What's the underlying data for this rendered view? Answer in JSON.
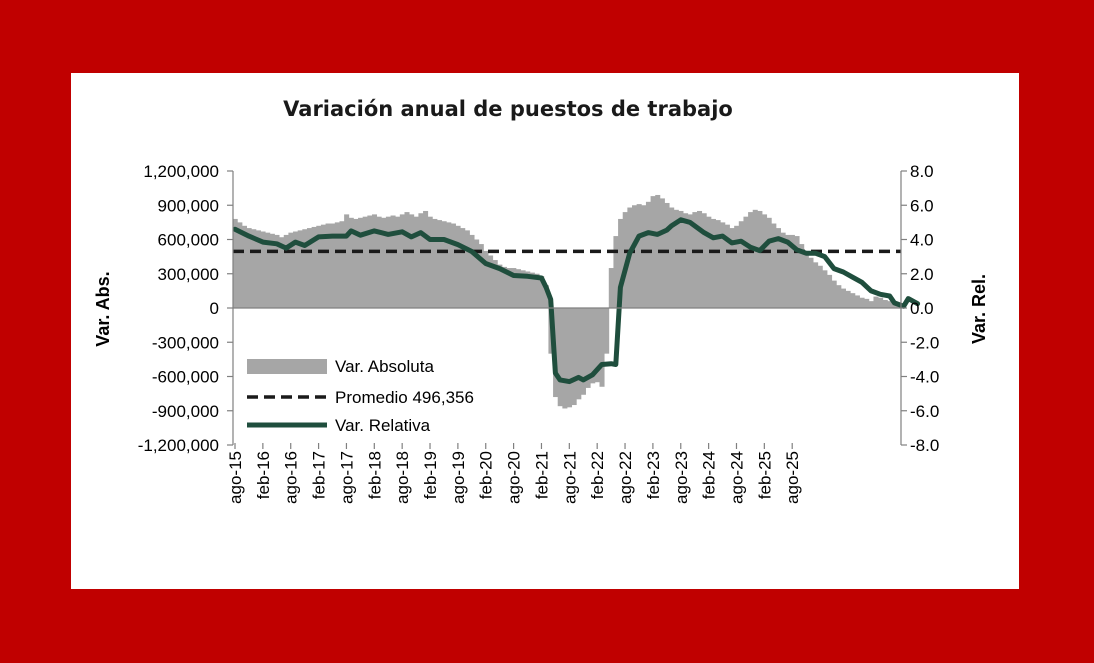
{
  "chart_data": {
    "type": "bar+line",
    "title": "Variación anual de puestos de trabajo",
    "ylabel_left": "Var. Abs.",
    "ylabel_right": "Var. Rel.",
    "ylim_left": [
      -1200000,
      1200000
    ],
    "ylim_right": [
      -8,
      8
    ],
    "yticks_left": [
      "1,200,000",
      "900,000",
      "600,000",
      "300,000",
      "0",
      "-300,000",
      "-600,000",
      "-900,000",
      "-1,200,000"
    ],
    "yticks_right": [
      "8.0",
      "6.0",
      "4.0",
      "2.0",
      "0.0",
      "-2.0",
      "-4.0",
      "-6.0",
      "-8.0"
    ],
    "xticks": [
      "ago-15",
      "feb-16",
      "ago-16",
      "feb-17",
      "ago-17",
      "feb-18",
      "ago-18",
      "feb-19",
      "ago-19",
      "feb-20",
      "ago-20",
      "feb-21",
      "ago-21",
      "feb-22",
      "ago-22",
      "feb-23",
      "ago-23",
      "feb-24",
      "ago-24",
      "feb-25",
      "ago-25"
    ],
    "average": 496356,
    "legend": {
      "position": "lower-left",
      "absolute": "Var. Absoluta",
      "average": "Promedio 496,356",
      "relative": "Var. Relativa"
    },
    "colors": {
      "bars": "#a6a6a6",
      "line": "#1f4e3d",
      "average": "#1a1a1a"
    },
    "absolute_monthly": [
      780000,
      750000,
      720000,
      700000,
      690000,
      680000,
      670000,
      660000,
      650000,
      640000,
      620000,
      640000,
      660000,
      670000,
      680000,
      690000,
      700000,
      710000,
      720000,
      730000,
      740000,
      740000,
      750000,
      760000,
      820000,
      790000,
      780000,
      790000,
      800000,
      810000,
      820000,
      800000,
      790000,
      800000,
      810000,
      800000,
      820000,
      840000,
      820000,
      800000,
      830000,
      850000,
      800000,
      780000,
      770000,
      760000,
      750000,
      740000,
      720000,
      700000,
      680000,
      640000,
      600000,
      560000,
      500000,
      460000,
      420000,
      380000,
      360000,
      350000,
      350000,
      340000,
      330000,
      320000,
      310000,
      300000,
      280000,
      200000,
      -400000,
      -780000,
      -860000,
      -880000,
      -870000,
      -850000,
      -800000,
      -760000,
      -700000,
      -660000,
      -650000,
      -690000,
      -400000,
      350000,
      630000,
      780000,
      840000,
      880000,
      900000,
      910000,
      900000,
      930000,
      980000,
      990000,
      960000,
      920000,
      880000,
      860000,
      850000,
      830000,
      820000,
      840000,
      850000,
      830000,
      800000,
      780000,
      770000,
      750000,
      730000,
      700000,
      720000,
      760000,
      800000,
      840000,
      860000,
      850000,
      820000,
      790000,
      740000,
      700000,
      660000,
      640000,
      640000,
      630000,
      560000,
      480000,
      440000,
      400000,
      370000,
      330000,
      290000,
      240000,
      200000,
      170000,
      150000,
      130000,
      110000,
      90000,
      80000,
      60000,
      100000,
      90000,
      70000,
      60000,
      50000,
      40000
    ],
    "relative_points": [
      [
        0,
        4.6
      ],
      [
        3,
        4.2
      ],
      [
        6,
        3.85
      ],
      [
        9,
        3.75
      ],
      [
        11,
        3.5
      ],
      [
        13,
        3.85
      ],
      [
        15,
        3.65
      ],
      [
        18,
        4.15
      ],
      [
        21,
        4.2
      ],
      [
        24,
        4.2
      ],
      [
        25,
        4.5
      ],
      [
        27,
        4.25
      ],
      [
        30,
        4.5
      ],
      [
        33,
        4.3
      ],
      [
        36,
        4.45
      ],
      [
        38,
        4.15
      ],
      [
        40,
        4.4
      ],
      [
        42,
        4.0
      ],
      [
        45,
        4.0
      ],
      [
        48,
        3.7
      ],
      [
        51,
        3.3
      ],
      [
        54,
        2.6
      ],
      [
        57,
        2.3
      ],
      [
        60,
        1.9
      ],
      [
        63,
        1.85
      ],
      [
        66,
        1.75
      ],
      [
        67,
        1.2
      ],
      [
        68,
        0.5
      ],
      [
        69,
        -3.8
      ],
      [
        70,
        -4.2
      ],
      [
        72,
        -4.3
      ],
      [
        74,
        -4.05
      ],
      [
        75,
        -4.2
      ],
      [
        77,
        -3.9
      ],
      [
        79,
        -3.3
      ],
      [
        81,
        -3.25
      ],
      [
        82,
        -3.3
      ],
      [
        83,
        1.2
      ],
      [
        85,
        3.2
      ],
      [
        87,
        4.2
      ],
      [
        89,
        4.4
      ],
      [
        91,
        4.3
      ],
      [
        93,
        4.55
      ],
      [
        94,
        4.8
      ],
      [
        96,
        5.15
      ],
      [
        98,
        5.0
      ],
      [
        101,
        4.4
      ],
      [
        103,
        4.1
      ],
      [
        105,
        4.2
      ],
      [
        107,
        3.8
      ],
      [
        109,
        3.9
      ],
      [
        111,
        3.55
      ],
      [
        113,
        3.35
      ],
      [
        115,
        3.9
      ],
      [
        117,
        4.05
      ],
      [
        119,
        3.85
      ],
      [
        121,
        3.4
      ],
      [
        123,
        3.2
      ],
      [
        125,
        3.2
      ],
      [
        127,
        3.0
      ],
      [
        129,
        2.3
      ],
      [
        131,
        2.1
      ],
      [
        133,
        1.8
      ],
      [
        135,
        1.5
      ],
      [
        137,
        1.0
      ],
      [
        139,
        0.8
      ],
      [
        141,
        0.7
      ],
      [
        142,
        0.3
      ],
      [
        144,
        0.1
      ],
      [
        145,
        0.55
      ],
      [
        147,
        0.25
      ]
    ]
  }
}
